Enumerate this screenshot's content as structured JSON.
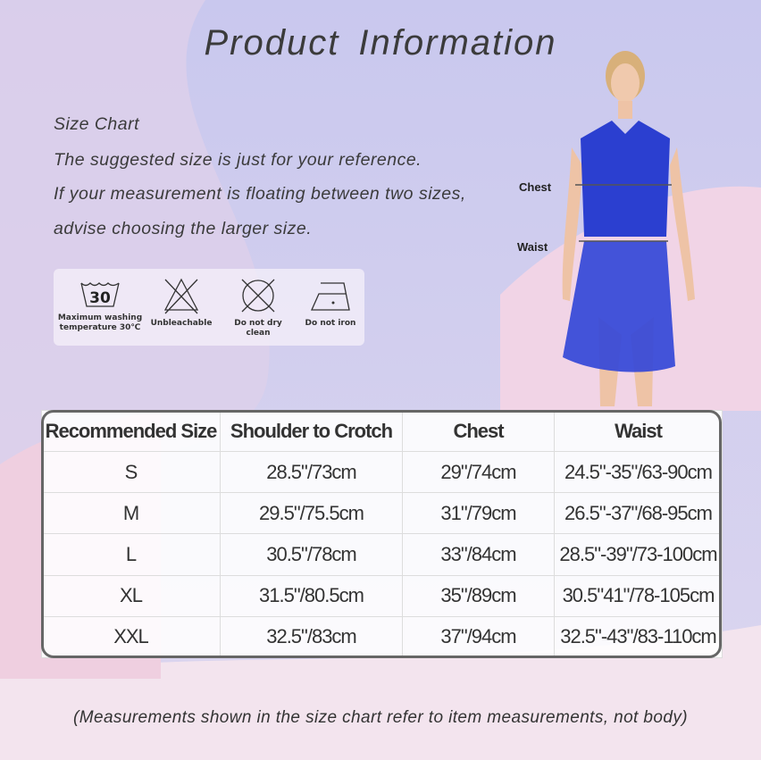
{
  "title": "Product  Information",
  "intro": [
    "Size Chart",
    "The suggested size is just for your reference.",
    "If your measurement is floating between two sizes,",
    "advise choosing the larger size."
  ],
  "care": [
    {
      "icon": "wash-30-icon",
      "number": "30",
      "label1": "Maximum washing",
      "label2": "temperature 30℃"
    },
    {
      "icon": "no-bleach-icon",
      "label1": "Unbleachable"
    },
    {
      "icon": "no-dry-clean-icon",
      "label1": "Do not dry clean"
    },
    {
      "icon": "no-iron-icon",
      "label1": "Do not iron"
    }
  ],
  "figure": {
    "chest_label": "Chest",
    "waist_label": "Waist",
    "dress_color": "#2b3fd0"
  },
  "table": {
    "headers": [
      "Recommended Size",
      "Shoulder to Crotch",
      "Chest",
      "Waist"
    ],
    "rows": [
      [
        "S",
        "28.5\"/73cm",
        "29\"/74cm",
        "24.5\"-35\"/63-90cm"
      ],
      [
        "M",
        "29.5\"/75.5cm",
        "31\"/79cm",
        "26.5\"-37\"/68-95cm"
      ],
      [
        "L",
        "30.5\"/78cm",
        "33\"/84cm",
        "28.5\"-39\"/73-100cm"
      ],
      [
        "XL",
        "31.5\"/80.5cm",
        "35\"/89cm",
        "30.5\"41\"/78-105cm"
      ],
      [
        "XXL",
        "32.5\"/83cm",
        "37\"/94cm",
        "32.5\"-43\"/83-110cm"
      ]
    ]
  },
  "footer": "(Measurements shown in the size chart refer to item measurements, not body)"
}
